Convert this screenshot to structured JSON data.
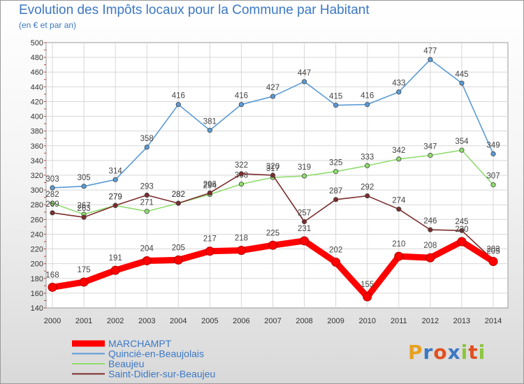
{
  "title": "Evolution des Impôts locaux pour la Commune par Habitant",
  "subtitle": "(en € et par an)",
  "logo": {
    "letters": [
      "P",
      "r",
      "o",
      "x",
      "i",
      "t",
      "i"
    ],
    "colors": [
      "#e8a020",
      "#3c78c4",
      "#e05020",
      "#3c78c4",
      "#8cc63e",
      "#e05020",
      "#8cc63e"
    ]
  },
  "chart_data": {
    "type": "line",
    "x": [
      "2000",
      "2001",
      "2002",
      "2003",
      "2004",
      "2005",
      "2006",
      "2007",
      "2008",
      "2009",
      "2010",
      "2011",
      "2012",
      "2013",
      "2014"
    ],
    "ylim": [
      140,
      500
    ],
    "yticks": [
      "140",
      "160",
      "180",
      "200",
      "220",
      "240",
      "260",
      "280",
      "300",
      "320",
      "340",
      "360",
      "380",
      "400",
      "420",
      "440",
      "460",
      "480",
      "500"
    ],
    "grid": true,
    "legend_position": "bottom-left",
    "series": [
      {
        "name": "Quincié-en-Beaujolais",
        "color": "#5b9bd5",
        "values": [
          303,
          305,
          314,
          358,
          416,
          381,
          416,
          427,
          447,
          415,
          416,
          433,
          477,
          445,
          349
        ]
      },
      {
        "name": "Beaujeu",
        "color": "#8fdc6e",
        "values": [
          282,
          267,
          279,
          271,
          282,
          294,
          308,
          317,
          319,
          325,
          333,
          342,
          347,
          354,
          307
        ]
      },
      {
        "name": "Saint-Didier-sur-Beaujeu",
        "color": "#7b2c2c",
        "values": [
          269,
          263,
          279,
          293,
          282,
          296,
          322,
          320,
          257,
          287,
          292,
          274,
          246,
          245,
          205
        ]
      },
      {
        "name": "MARCHAMPT",
        "color": "#ff0000",
        "values": [
          168,
          175,
          191,
          204,
          205,
          217,
          218,
          225,
          231,
          202,
          155,
          210,
          208,
          230,
          203
        ]
      }
    ]
  }
}
